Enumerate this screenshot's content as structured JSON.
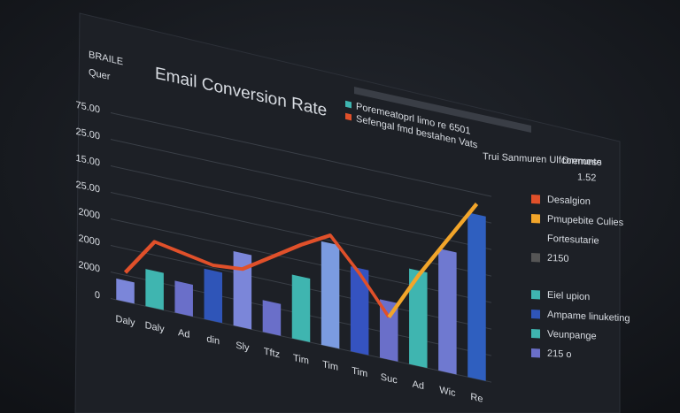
{
  "chart_data": {
    "type": "bar",
    "title": "Email Conversion Rate",
    "corner_texts": [
      "BRAILE",
      "Quer"
    ],
    "categories": [
      "Daly",
      "Daly",
      "Ad",
      "din",
      "Sly",
      "Tftz",
      "Tim",
      "Tim",
      "Tim",
      "Suc",
      "Ad",
      "Wic",
      "Re"
    ],
    "series": [
      {
        "name": "Poremeatoprl limo re 6501",
        "type": "bar",
        "color": "#3fb5b0",
        "colors": [
          "#7b86d9",
          "#3fb5b0",
          "#6a6fc9",
          "#2f55b8",
          "#7b86d9",
          "#6a6fc9",
          "#3fb5b0",
          "#7b9be0",
          "#3553c0",
          "#6a6fc9",
          "#3fb5b0",
          "#6f79d0",
          "#2f5fbf"
        ],
        "values": [
          0.8,
          1.4,
          1.2,
          1.9,
          2.8,
          1.2,
          2.4,
          3.9,
          3.2,
          2.2,
          3.6,
          4.6,
          6.2
        ]
      },
      {
        "name": "Sefengal fmd bestahen Vats",
        "type": "line",
        "color": "#e0502a",
        "values": [
          1.1,
          2.5,
          2.3,
          2.1,
          2.2,
          2.9,
          3.6,
          4.2,
          3.0,
          1.6,
          null,
          null,
          null
        ]
      },
      {
        "name": "Pmupebite Culies",
        "type": "line",
        "color": "#f2a52a",
        "values": [
          null,
          null,
          null,
          null,
          null,
          null,
          null,
          null,
          null,
          1.6,
          3.4,
          5.0,
          6.6
        ]
      }
    ],
    "ylim": [
      0,
      7
    ],
    "yticks": [
      {
        "value": 0,
        "label": "0"
      },
      {
        "value": 1,
        "label": "2000"
      },
      {
        "value": 2,
        "label": "2000"
      },
      {
        "value": 3,
        "label": "2000"
      },
      {
        "value": 4,
        "label": "25.00"
      },
      {
        "value": 5,
        "label": "15.00"
      },
      {
        "value": 6,
        "label": "25.00"
      },
      {
        "value": 7,
        "label": "75.00"
      }
    ],
    "grid": true,
    "side_panel": {
      "heading": "Trui Sanmuren Ulfcormunte",
      "stat_label": "Drerness",
      "stat_value": "1.52",
      "items": [
        {
          "text": "Desalgion",
          "color": "#e0502a"
        },
        {
          "text": "Pmupebite Culies",
          "color": "#f2a52a"
        },
        {
          "text": "Fortesutarie",
          "color": null
        },
        {
          "text": "2150",
          "color": "#555555"
        },
        {
          "text": "Eiel upion",
          "color": "#3fb5b0"
        },
        {
          "text": "Ampame linuketing",
          "color": "#2f55b8"
        },
        {
          "text": "Veunpange",
          "color": "#3fb5b0"
        },
        {
          "text": "215 o",
          "color": "#6a6fc9"
        }
      ]
    }
  }
}
